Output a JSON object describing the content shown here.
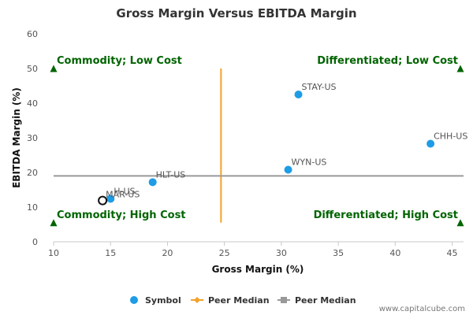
{
  "chart_data": {
    "type": "scatter",
    "title": "Gross Margin Versus EBITDA Margin",
    "xlabel": "Gross Margin (%)",
    "ylabel": "EBITDA Margin (%)",
    "xlim": [
      10,
      46
    ],
    "ylim": [
      0,
      60
    ],
    "x_ticks": [
      10,
      15,
      20,
      25,
      30,
      35,
      40,
      45
    ],
    "y_ticks": [
      0,
      10,
      20,
      30,
      40,
      50,
      60
    ],
    "grid": false,
    "points": [
      {
        "label": "STAY-US",
        "x": 31.5,
        "y": 42.5,
        "highlight": false
      },
      {
        "label": "CHH-US",
        "x": 43.1,
        "y": 28.3,
        "highlight": false
      },
      {
        "label": "WYN-US",
        "x": 30.6,
        "y": 20.8,
        "highlight": false
      },
      {
        "label": "HLT-US",
        "x": 18.7,
        "y": 17.2,
        "highlight": false
      },
      {
        "label": "H-US",
        "x": 15.0,
        "y": 12.4,
        "highlight": false
      },
      {
        "label": "MAR-US",
        "x": 14.3,
        "y": 11.9,
        "highlight": true
      }
    ],
    "peer_median_x": 24.7,
    "peer_median_y": 19.0,
    "peer_median_x_range": [
      5.5,
      50
    ],
    "quadrants": [
      {
        "label": "Commodity; Low Cost",
        "corner": "top-left"
      },
      {
        "label": "Differentiated; Low Cost",
        "corner": "top-right"
      },
      {
        "label": "Commodity; High Cost",
        "corner": "bottom-left"
      },
      {
        "label": "Differentiated; High Cost",
        "corner": "bottom-right"
      }
    ],
    "legend": {
      "placement": "bottom-center",
      "entries": [
        {
          "label": "Symbol",
          "marker": "circle",
          "color": "#1e9ce6"
        },
        {
          "label": "Peer Median",
          "marker": "diamond-line",
          "color": "#f4a22a"
        },
        {
          "label": "Peer Median",
          "marker": "square-line",
          "color": "#999999"
        }
      ]
    },
    "colors": {
      "point": "#1e9ce6",
      "highlight_stroke": "#111111",
      "median_x": "#f4a22a",
      "median_y": "#9a9a9a",
      "quadrant_text": "#006400",
      "quadrant_marker": "#006400"
    }
  },
  "credit": "www.capitalcube.com"
}
